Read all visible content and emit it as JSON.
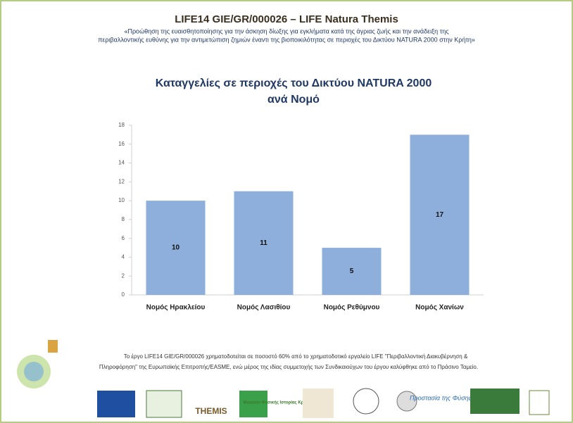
{
  "header": {
    "title": "LIFE14 GIE/GR/000026 – LIFE Natura Themis",
    "subtitle": [
      "«Προώθηση της ευαισθητοποίησης για την άσκηση δίωξης για εγκλήματα κατά της άγριας ζωής και την ανάδειξη της",
      "περιβαλλοντικής ευθύνης για την αντιμετώπιση ζημιών έναντι της βιοποικιλότητας σε περιοχές του Δικτύου NATURA 2000 στην Κρήτη»"
    ]
  },
  "chart_data": {
    "type": "bar",
    "title": [
      "Καταγγελίες σε περιοχές του Δικτύου NATURA 2000",
      "ανά Νομό"
    ],
    "categories": [
      "Νομός Ηρακλείου",
      "Νομός Λασιθίου",
      "Νομός Ρεθύμνου",
      "Νομός Χανίων"
    ],
    "values": [
      10,
      11,
      5,
      17
    ],
    "color": "#8eaedb",
    "ylim": [
      0,
      18
    ],
    "yticks": [
      0,
      2,
      4,
      6,
      8,
      10,
      12,
      14,
      16,
      18
    ],
    "grid": false
  },
  "footer": {
    "text": [
      "Το έργο LIFE14 GIE/GR/000026 χρηματοδοτείται σε ποσοστό 60% από το χρηματοδοτικό εργαλείο LIFE \"Περιβαλλοντική Διακυβέρνηση &",
      "Πληροφόρηση\" της Ευρωπαϊκής Επιτροπής/EASME, ενώ μέρος της ιδίας συμμετοχής των Συνδικαιούχων του έργου καλύφθηκε από το Πράσινο Ταμείο."
    ],
    "logos": [
      "THEMIS",
      "Μουσείο Φυσικής Ιστορίας Κρήτης",
      "Προστασία της Φύσης"
    ]
  }
}
